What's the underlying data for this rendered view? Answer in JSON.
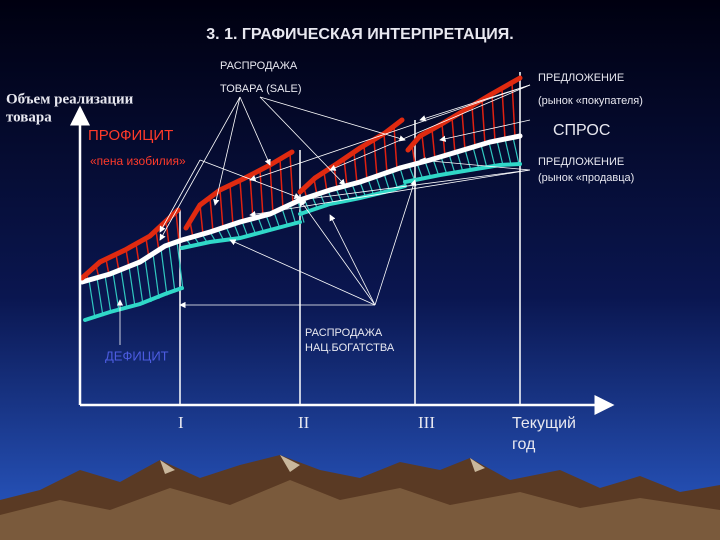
{
  "title": "3. 1. ГРАФИЧЕСКАЯ ИНТЕРПРЕТАЦИЯ.",
  "y_axis_label": [
    "Объем реализации",
    "товара"
  ],
  "labels": {
    "sale_goods": [
      "РАСПРОДАЖА",
      "ТОВАРА (SALE)"
    ],
    "supply_buyer": [
      "ПРЕДЛОЖЕНИЕ",
      "(рынок «покупателя)"
    ],
    "demand": "СПРОС",
    "supply_seller": [
      "ПРЕДЛОЖЕНИЕ",
      "(рынок «продавца)"
    ],
    "surplus": [
      "ПРОФИЦИТ",
      "«пена изобилия»"
    ],
    "deficit": "ДЕФИЦИТ",
    "sale_wealth": [
      "РАСПРОДАЖА",
      "НАЦ.БОГАТСТВА"
    ]
  },
  "x_labels": [
    "I",
    "II",
    "III",
    [
      "Текущий",
      "год"
    ]
  ]
}
